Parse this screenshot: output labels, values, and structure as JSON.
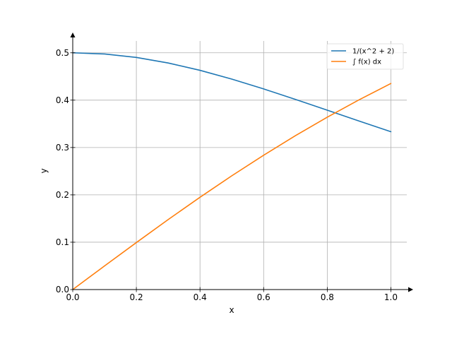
{
  "chart_data": {
    "type": "line",
    "title": "",
    "xlabel": "x",
    "ylabel": "y",
    "xlim": [
      0.0,
      1.05
    ],
    "ylim": [
      0.0,
      0.525
    ],
    "xticks": [
      0.0,
      0.2,
      0.4,
      0.6,
      0.8,
      1.0
    ],
    "xtick_labels": [
      "0.0",
      "0.2",
      "0.4",
      "0.6",
      "0.8",
      "1.0"
    ],
    "yticks": [
      0.0,
      0.1,
      0.2,
      0.3,
      0.4,
      0.5
    ],
    "ytick_labels": [
      "0.0",
      "0.1",
      "0.2",
      "0.3",
      "0.4",
      "0.5"
    ],
    "grid": true,
    "legend_position": "top-right",
    "series": [
      {
        "name": "1/(x^2 + 2)",
        "color": "#1f77b4",
        "x": [
          0.0,
          0.1,
          0.2,
          0.3,
          0.4,
          0.5,
          0.6,
          0.7,
          0.8,
          0.9,
          1.0
        ],
        "y": [
          0.5,
          0.4975,
          0.4902,
          0.4785,
          0.463,
          0.4444,
          0.4237,
          0.4016,
          0.3788,
          0.3559,
          0.3333
        ]
      },
      {
        "name": "∫ f(x) dx",
        "color": "#ff7f0e",
        "x": [
          0.0,
          0.1,
          0.2,
          0.3,
          0.4,
          0.5,
          0.6,
          0.7,
          0.8,
          0.9,
          1.0
        ],
        "y": [
          0.0,
          0.0499,
          0.0993,
          0.1478,
          0.1949,
          0.2403,
          0.2837,
          0.325,
          0.364,
          0.4007,
          0.4352
        ]
      }
    ]
  }
}
